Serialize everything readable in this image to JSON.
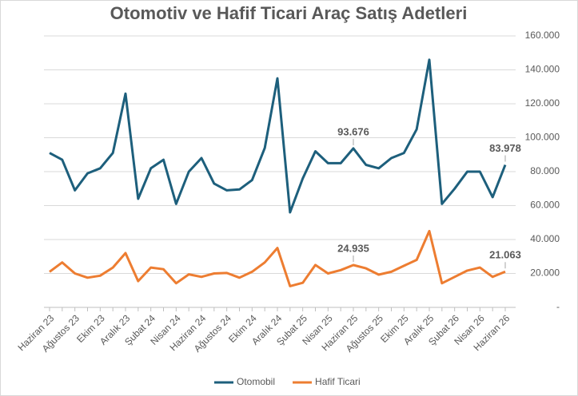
{
  "chart_data": {
    "type": "line",
    "title": "Otomotiv ve Hafif Ticari Araç Satış Adetleri",
    "categories": [
      "Haziran 23",
      null,
      "Ağustos 23",
      null,
      "Ekim 23",
      null,
      "Aralık 23",
      null,
      "Şubat 24",
      null,
      "Nisan 24",
      null,
      "Haziran 24",
      null,
      "Ağustos 24",
      null,
      "Ekim 24",
      null,
      "Aralık 24",
      null,
      "Şubat 25",
      null,
      "Nisan 25",
      null,
      "Haziran 25",
      null,
      "Ağustos 25",
      null,
      "Ekim 25",
      null,
      "Aralık 25",
      null,
      "Şubat 26",
      null,
      "Nisan 26",
      null,
      "Haziran 26"
    ],
    "series": [
      {
        "name": "Otomobil",
        "color": "#1d5f7c",
        "values": [
          91000,
          87000,
          69000,
          79000,
          82000,
          91000,
          126000,
          64000,
          82000,
          87000,
          61000,
          80000,
          88000,
          73000,
          69000,
          69500,
          75000,
          94000,
          135000,
          56000,
          76000,
          92000,
          85000,
          85000,
          93676,
          84000,
          82000,
          88000,
          91000,
          105000,
          146000,
          61000,
          70000,
          80000,
          80000,
          65000,
          83978
        ],
        "value_labels": [
          null,
          null,
          null,
          null,
          null,
          null,
          null,
          null,
          null,
          null,
          null,
          null,
          null,
          null,
          null,
          null,
          null,
          null,
          null,
          null,
          null,
          null,
          null,
          null,
          "93.676",
          null,
          null,
          null,
          null,
          null,
          null,
          null,
          null,
          null,
          null,
          null,
          "83.978"
        ]
      },
      {
        "name": "Hafif Ticari",
        "color": "#ed7d31",
        "values": [
          21000,
          26500,
          20000,
          17500,
          18700,
          23500,
          32000,
          15500,
          23500,
          22500,
          14200,
          19500,
          18000,
          20000,
          20300,
          17500,
          21000,
          26500,
          35000,
          12500,
          14500,
          25000,
          20000,
          22000,
          24935,
          23000,
          19300,
          21000,
          24500,
          28000,
          45000,
          14200,
          18000,
          21700,
          23500,
          18000,
          21063
        ],
        "value_labels": [
          null,
          null,
          null,
          null,
          null,
          null,
          null,
          null,
          null,
          null,
          null,
          null,
          null,
          null,
          null,
          null,
          null,
          null,
          null,
          null,
          null,
          null,
          null,
          null,
          "24.935",
          null,
          null,
          null,
          null,
          null,
          null,
          null,
          null,
          null,
          null,
          null,
          "21.063"
        ]
      }
    ],
    "ylim": [
      0,
      160000
    ],
    "yticks": [
      {
        "value": 0,
        "label": "-"
      },
      {
        "value": 20000,
        "label": "20.000"
      },
      {
        "value": 40000,
        "label": "40.000"
      },
      {
        "value": 60000,
        "label": "60.000"
      },
      {
        "value": 80000,
        "label": "80.000"
      },
      {
        "value": 100000,
        "label": "100.000"
      },
      {
        "value": 120000,
        "label": "120.000"
      },
      {
        "value": 140000,
        "label": "140.000"
      },
      {
        "value": 160000,
        "label": "160.000"
      }
    ],
    "grid": true,
    "legend": "bottom"
  }
}
